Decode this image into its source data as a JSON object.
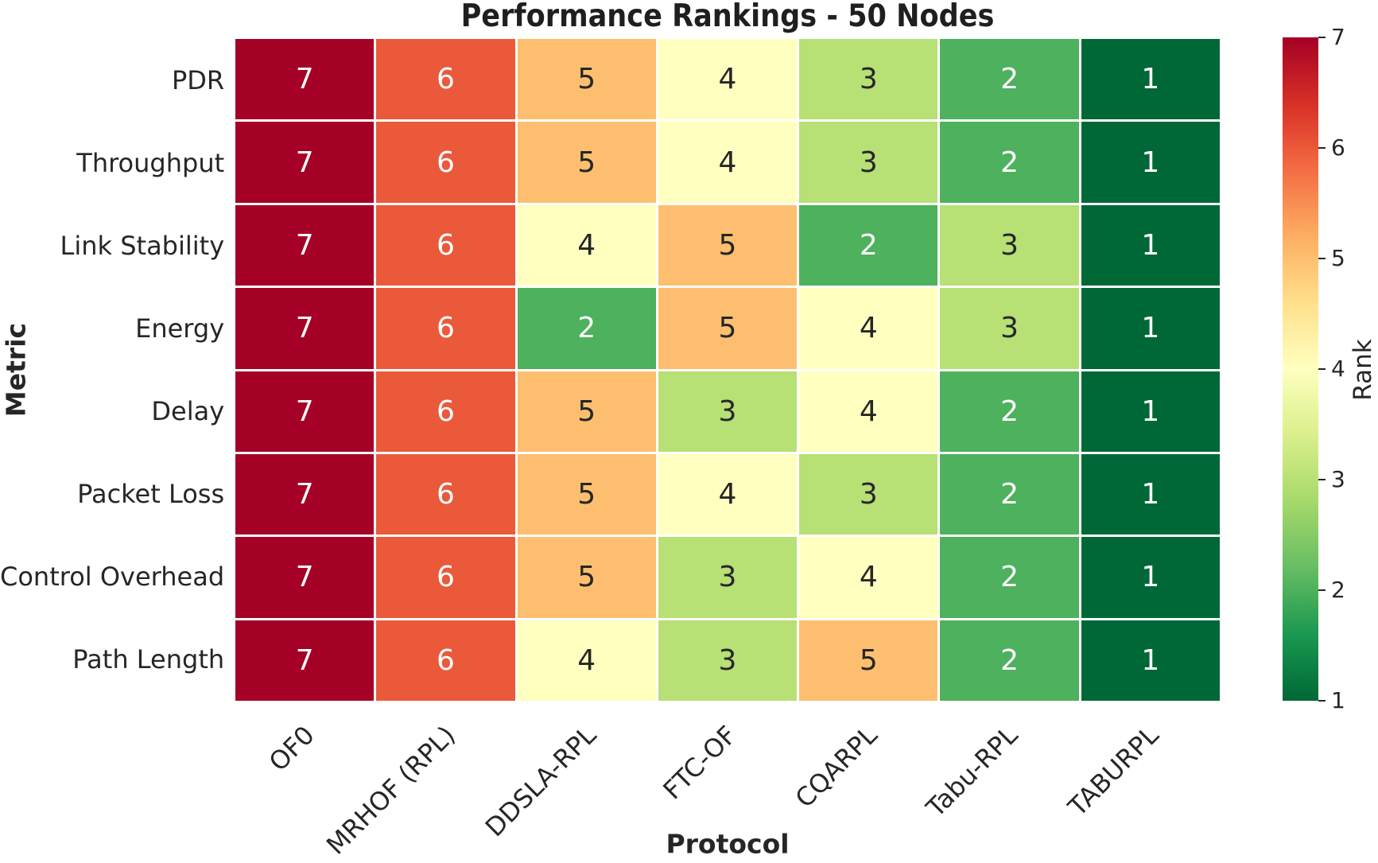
{
  "chart_data": {
    "type": "heatmap",
    "title": "Performance Rankings - 50 Nodes",
    "xlabel": "Protocol",
    "ylabel": "Metric",
    "colorbar_label": "Rank",
    "colormap": "RdYlGn_r",
    "colorbar_range": [
      1,
      7
    ],
    "colorbar_ticks": [
      7,
      6,
      5,
      4,
      3,
      2,
      1
    ],
    "columns": [
      "OF0",
      "MRHOF (RPL)",
      "DDSLA-RPL",
      "FTC-OF",
      "CQARPL",
      "Tabu-RPL",
      "TABURPL"
    ],
    "rows": [
      "PDR",
      "Throughput",
      "Link Stability",
      "Energy",
      "Delay",
      "Packet Loss",
      "Control Overhead",
      "Path Length"
    ],
    "values": [
      [
        7,
        6,
        5,
        4,
        3,
        2,
        1
      ],
      [
        7,
        6,
        5,
        4,
        3,
        2,
        1
      ],
      [
        7,
        6,
        4,
        5,
        2,
        3,
        1
      ],
      [
        7,
        6,
        2,
        5,
        4,
        3,
        1
      ],
      [
        7,
        6,
        5,
        3,
        4,
        2,
        1
      ],
      [
        7,
        6,
        5,
        4,
        3,
        2,
        1
      ],
      [
        7,
        6,
        5,
        3,
        4,
        2,
        1
      ],
      [
        7,
        6,
        4,
        3,
        5,
        2,
        1
      ]
    ],
    "rank_colors": {
      "1": "#006837",
      "2": "#4db15d",
      "3": "#b7e075",
      "4": "#ffffbf",
      "5": "#fdbf6f",
      "6": "#ea593a",
      "7": "#a50026"
    },
    "dark_text_ranks": [
      3,
      4,
      5
    ],
    "annotation_colors": {
      "on_dark_cell": "#ffffff",
      "on_light_cell": "#262626"
    },
    "colorbar_gradient_top_to_bottom": [
      "#a50026",
      "#d73027",
      "#f46d43",
      "#fdae61",
      "#fee08b",
      "#ffffbf",
      "#d9ef8b",
      "#a6d96a",
      "#66bd63",
      "#1a9850",
      "#006837"
    ],
    "grid": false,
    "legend_position": "right-colorbar"
  }
}
